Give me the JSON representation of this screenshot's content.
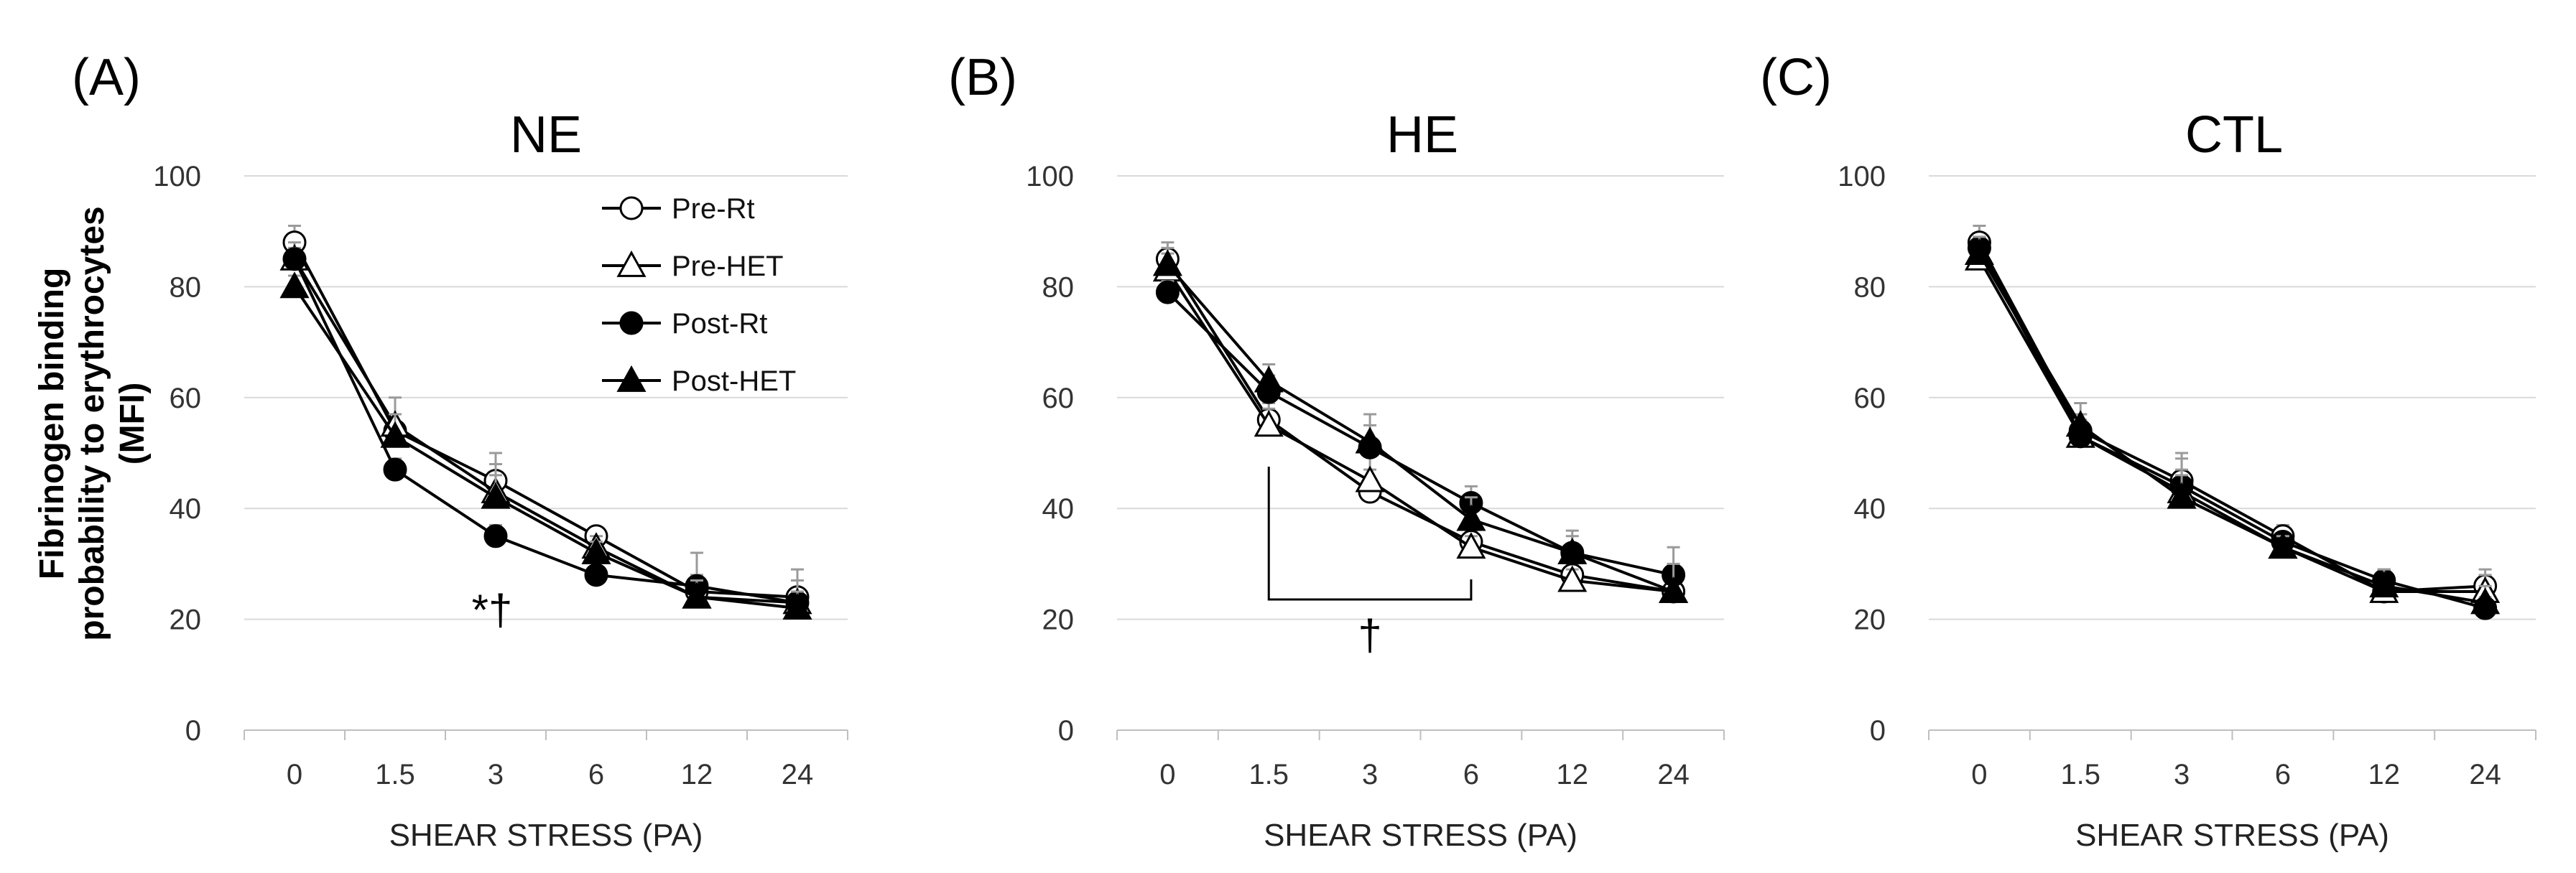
{
  "ylabel_lines": [
    "Fibrinogen  binding",
    "probability  to erythrocytes",
    "(MFI)"
  ],
  "legend": [
    {
      "label": "Pre-Rt",
      "marker": "circle",
      "fill": "white"
    },
    {
      "label": "Pre-HET",
      "marker": "triangle",
      "fill": "white"
    },
    {
      "label": "Post-Rt",
      "marker": "circle",
      "fill": "black"
    },
    {
      "label": "Post-HET",
      "marker": "triangle",
      "fill": "black"
    }
  ],
  "colors": {
    "line": "#000000",
    "grid": "#d9d9d9",
    "errorbar": "#9a9a9a"
  },
  "chart_data": [
    {
      "panel": "(A)",
      "type": "line",
      "title": "NE",
      "xlabel": "SHEAR STRESS (PA)",
      "categories": [
        "0",
        "1.5",
        "3",
        "6",
        "12",
        "24"
      ],
      "ylim": [
        0,
        100
      ],
      "yticks": [
        0,
        20,
        40,
        60,
        80,
        100
      ],
      "series": [
        {
          "name": "Pre-Rt",
          "values": [
            88,
            54,
            45,
            35,
            25,
            24
          ],
          "errors": [
            3,
            3,
            5,
            1.5,
            3,
            3
          ]
        },
        {
          "name": "Pre-HET",
          "values": [
            85,
            55,
            43,
            33,
            24,
            23
          ],
          "errors": [
            3,
            5,
            5,
            2,
            8,
            6
          ]
        },
        {
          "name": "Post-Rt",
          "values": [
            85,
            47,
            35,
            28,
            26,
            23
          ],
          "errors": [
            2,
            2,
            2,
            1.5,
            2,
            2
          ]
        },
        {
          "name": "Post-HET",
          "values": [
            80,
            53,
            42,
            32,
            24,
            22
          ],
          "errors": [
            2,
            4,
            4,
            2,
            3,
            3
          ]
        }
      ],
      "annotations": [
        {
          "text": "*†",
          "category": "3"
        }
      ]
    },
    {
      "panel": "(B)",
      "type": "line",
      "title": "HE",
      "xlabel": "SHEAR STRESS (PA)",
      "categories": [
        "0",
        "1.5",
        "3",
        "6",
        "12",
        "24"
      ],
      "ylim": [
        0,
        100
      ],
      "yticks": [
        0,
        20,
        40,
        60,
        80,
        100
      ],
      "series": [
        {
          "name": "Pre-Rt",
          "values": [
            85,
            56,
            43,
            34,
            28,
            25
          ],
          "errors": [
            3,
            3,
            4,
            2,
            2,
            2
          ]
        },
        {
          "name": "Pre-HET",
          "values": [
            83,
            55,
            45,
            33,
            27,
            25
          ],
          "errors": [
            3,
            3,
            5,
            2,
            2,
            2
          ]
        },
        {
          "name": "Post-Rt",
          "values": [
            79,
            61,
            51,
            41,
            32,
            28
          ],
          "errors": [
            2,
            3,
            4,
            3,
            3,
            5
          ]
        },
        {
          "name": "Post-HET",
          "values": [
            84,
            63,
            52,
            38,
            32,
            25
          ],
          "errors": [
            3,
            3,
            5,
            4,
            4,
            5
          ]
        }
      ],
      "annotations": [
        {
          "text": "†",
          "bracket": [
            "1.5",
            "6"
          ]
        }
      ]
    },
    {
      "panel": "(C)",
      "type": "line",
      "title": "CTL",
      "xlabel": "SHEAR STRESS (PA)",
      "categories": [
        "0",
        "1.5",
        "3",
        "6",
        "12",
        "24"
      ],
      "ylim": [
        0,
        100
      ],
      "yticks": [
        0,
        20,
        40,
        60,
        80,
        100
      ],
      "series": [
        {
          "name": "Pre-Rt",
          "values": [
            88,
            54,
            45,
            35,
            25,
            26
          ],
          "errors": [
            3,
            3,
            5,
            2,
            3,
            3
          ]
        },
        {
          "name": "Pre-HET",
          "values": [
            85,
            53,
            43,
            33,
            25,
            25
          ],
          "errors": [
            3,
            4,
            6,
            2,
            4,
            3
          ]
        },
        {
          "name": "Post-Rt",
          "values": [
            87,
            53,
            44,
            34,
            27,
            22
          ],
          "errors": [
            2,
            3,
            3,
            1.5,
            2,
            2
          ]
        },
        {
          "name": "Post-HET",
          "values": [
            86,
            55,
            42,
            33,
            26,
            23
          ],
          "errors": [
            3,
            4,
            4,
            2,
            3,
            3
          ]
        }
      ]
    }
  ]
}
